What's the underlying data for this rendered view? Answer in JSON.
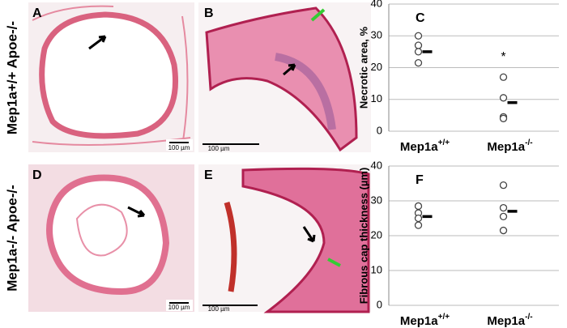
{
  "panels": {
    "row_labels": [
      "Mep1a+/+ Apoe-/-",
      "Mep1a-/- Apoe-/-"
    ],
    "letters": [
      "A",
      "B",
      "D",
      "E"
    ],
    "scale_bars": [
      "100 µm",
      "100 µm",
      "100 µm",
      "100 µm"
    ]
  },
  "chart_data": [
    {
      "type": "dot",
      "label": "C",
      "y_label": "Necrotic area, %",
      "categories": [
        "Mep1a+/+",
        "Mep1a-/-"
      ],
      "values": [
        [
          30,
          27,
          25,
          21.5
        ],
        [
          17,
          10.5,
          4.5,
          4
        ]
      ],
      "means": [
        25,
        9
      ],
      "annotation": {
        "text": "*",
        "category": 1,
        "y": 24
      },
      "ylim": [
        0,
        40
      ],
      "yticks": [
        0,
        10,
        20,
        30,
        40
      ],
      "grid": true
    },
    {
      "type": "dot",
      "label": "F",
      "y_label": "Fibrous cap thickness (µm)",
      "categories": [
        "Mep1a+/+",
        "Mep1a-/-"
      ],
      "values": [
        [
          28.5,
          26.5,
          25,
          23
        ],
        [
          34.5,
          28,
          25.5,
          21.5
        ]
      ],
      "means": [
        25.5,
        27
      ],
      "ylim": [
        0,
        40
      ],
      "yticks": [
        0,
        10,
        20,
        30,
        40
      ],
      "grid": true
    }
  ]
}
